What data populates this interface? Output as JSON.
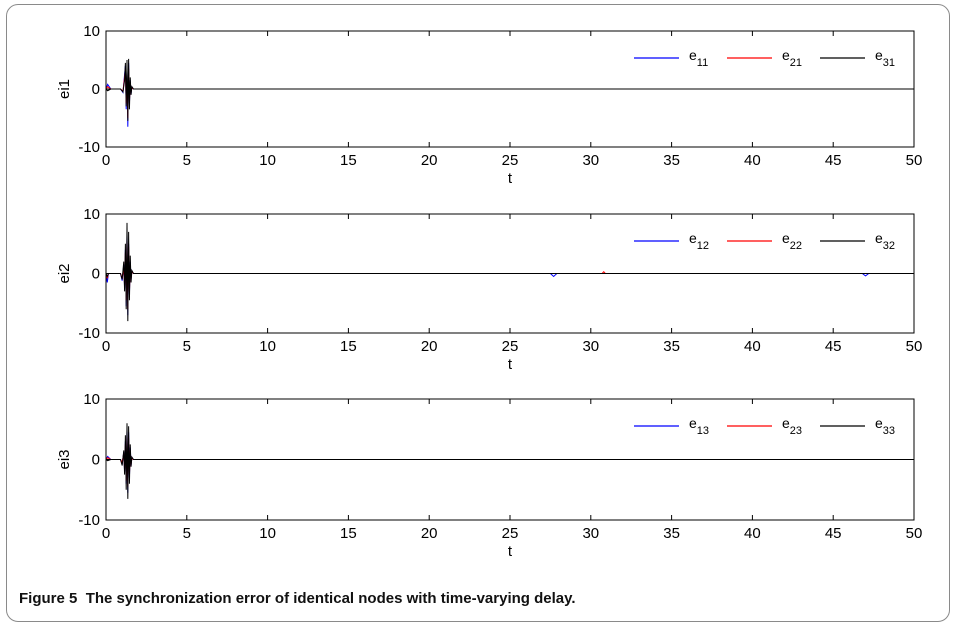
{
  "caption": {
    "label": "Figure 5",
    "text": "The synchronization error of identical nodes with time-varying delay."
  },
  "chart_data": [
    {
      "type": "line",
      "ylabel": "ei1",
      "xlabel": "t",
      "xlim": [
        0,
        50
      ],
      "ylim": [
        -10,
        10
      ],
      "xticks": [
        0,
        5,
        10,
        15,
        20,
        25,
        30,
        35,
        40,
        45,
        50
      ],
      "yticks": [
        -10,
        0,
        10
      ],
      "legend_position": "top-right",
      "series": [
        {
          "name": "e11",
          "base": "e",
          "sub": "11",
          "color": "#0000ff",
          "x": [
            0,
            0.1,
            0.3,
            0.9,
            1.05,
            1.15,
            1.2,
            1.25,
            1.3,
            1.35,
            1.4,
            1.45,
            1.5,
            1.55,
            1.6,
            1.7,
            1.9,
            50
          ],
          "y": [
            0,
            0.8,
            0,
            0,
            -0.6,
            2.5,
            4.0,
            -3.5,
            3.0,
            -6.5,
            4.5,
            -2.5,
            1.5,
            -0.8,
            0.3,
            0,
            0,
            0
          ]
        },
        {
          "name": "e21",
          "base": "e",
          "sub": "21",
          "color": "#ff0000",
          "x": [
            0,
            0.1,
            0.3,
            0.9,
            1.05,
            1.15,
            1.2,
            1.25,
            1.3,
            1.35,
            1.4,
            1.45,
            1.5,
            1.55,
            1.6,
            1.7,
            1.9,
            50
          ],
          "y": [
            0,
            0.4,
            0,
            0,
            -0.4,
            2.0,
            3.5,
            -2.5,
            2.5,
            -5.0,
            3.5,
            -2.0,
            1.2,
            -0.5,
            0.2,
            0,
            0,
            0
          ]
        },
        {
          "name": "e31",
          "base": "e",
          "sub": "31",
          "color": "#000000",
          "x": [
            0,
            0.1,
            0.3,
            0.9,
            1.05,
            1.15,
            1.2,
            1.25,
            1.3,
            1.35,
            1.4,
            1.45,
            1.5,
            1.55,
            1.6,
            1.7,
            1.9,
            50
          ],
          "y": [
            0,
            -0.3,
            0,
            0,
            -0.5,
            1.5,
            4.5,
            -3.0,
            5.0,
            -5.5,
            5.2,
            -3.5,
            2.0,
            -1.0,
            0.4,
            0,
            0,
            0
          ]
        }
      ]
    },
    {
      "type": "line",
      "ylabel": "ei2",
      "xlabel": "t",
      "xlim": [
        0,
        50
      ],
      "ylim": [
        -10,
        10
      ],
      "xticks": [
        0,
        5,
        10,
        15,
        20,
        25,
        30,
        35,
        40,
        45,
        50
      ],
      "yticks": [
        -10,
        0,
        10
      ],
      "legend_position": "top-right",
      "series": [
        {
          "name": "e12",
          "base": "e",
          "sub": "12",
          "color": "#0000ff",
          "x": [
            0,
            0.08,
            0.15,
            0.3,
            0.9,
            1.0,
            1.1,
            1.15,
            1.2,
            1.25,
            1.3,
            1.35,
            1.4,
            1.45,
            1.5,
            1.55,
            1.6,
            1.7,
            1.9,
            27.5,
            27.7,
            27.9,
            46.8,
            47.0,
            47.2,
            50
          ],
          "y": [
            0,
            -1.5,
            0,
            0,
            0,
            -1.2,
            1.5,
            -2.5,
            4.0,
            -5.5,
            6.5,
            -7.0,
            5.0,
            -3.5,
            2.0,
            -1.0,
            0.4,
            0,
            0,
            0,
            -0.5,
            0,
            0,
            -0.4,
            0,
            0
          ]
        },
        {
          "name": "e22",
          "base": "e",
          "sub": "22",
          "color": "#ff0000",
          "x": [
            0,
            0.08,
            0.15,
            0.3,
            0.9,
            1.0,
            1.1,
            1.15,
            1.2,
            1.25,
            1.3,
            1.35,
            1.4,
            1.45,
            1.5,
            1.55,
            1.6,
            1.7,
            1.9,
            30.7,
            30.8,
            30.9,
            50
          ],
          "y": [
            0,
            -0.8,
            0,
            0,
            0,
            -0.8,
            1.0,
            -2.0,
            3.5,
            -4.5,
            5.5,
            -6.0,
            4.5,
            -3.0,
            1.5,
            -0.8,
            0.3,
            0,
            0,
            0,
            0.3,
            0,
            0
          ]
        },
        {
          "name": "e32",
          "base": "e",
          "sub": "32",
          "color": "#000000",
          "x": [
            0,
            0.08,
            0.15,
            0.3,
            0.9,
            1.0,
            1.1,
            1.15,
            1.2,
            1.25,
            1.3,
            1.35,
            1.4,
            1.45,
            1.5,
            1.55,
            1.6,
            1.7,
            1.9,
            50
          ],
          "y": [
            0,
            -0.5,
            0,
            0,
            0,
            -1.0,
            2.0,
            -3.0,
            5.0,
            -6.0,
            8.5,
            -8.0,
            7.0,
            -4.5,
            3.0,
            -1.5,
            0.5,
            0,
            0,
            0
          ]
        }
      ]
    },
    {
      "type": "line",
      "ylabel": "ei3",
      "xlabel": "t",
      "xlim": [
        0,
        50
      ],
      "ylim": [
        -10,
        10
      ],
      "xticks": [
        0,
        5,
        10,
        15,
        20,
        25,
        30,
        35,
        40,
        45,
        50
      ],
      "yticks": [
        -10,
        0,
        10
      ],
      "legend_position": "top-right",
      "series": [
        {
          "name": "e13",
          "base": "e",
          "sub": "13",
          "color": "#0000ff",
          "x": [
            0,
            0.1,
            0.3,
            0.9,
            1.0,
            1.1,
            1.15,
            1.2,
            1.25,
            1.3,
            1.35,
            1.4,
            1.45,
            1.5,
            1.55,
            1.6,
            1.7,
            1.9,
            50
          ],
          "y": [
            0,
            0.5,
            0,
            0,
            -0.8,
            1.2,
            -2.0,
            3.0,
            -4.0,
            5.0,
            -5.5,
            4.5,
            -3.0,
            2.0,
            -1.0,
            0.3,
            0,
            0,
            0
          ]
        },
        {
          "name": "e23",
          "base": "e",
          "sub": "23",
          "color": "#ff0000",
          "x": [
            0,
            0.1,
            0.3,
            0.9,
            1.0,
            1.1,
            1.15,
            1.2,
            1.25,
            1.3,
            1.35,
            1.4,
            1.45,
            1.5,
            1.55,
            1.6,
            1.7,
            1.9,
            50
          ],
          "y": [
            0,
            0.3,
            0,
            0,
            -0.5,
            1.0,
            -1.5,
            2.5,
            -3.5,
            4.0,
            -4.5,
            3.5,
            -2.5,
            1.5,
            -0.8,
            0.2,
            0,
            0,
            0
          ]
        },
        {
          "name": "e33",
          "base": "e",
          "sub": "33",
          "color": "#000000",
          "x": [
            0,
            0.1,
            0.3,
            0.9,
            1.0,
            1.1,
            1.15,
            1.2,
            1.25,
            1.3,
            1.35,
            1.4,
            1.45,
            1.5,
            1.55,
            1.6,
            1.7,
            1.9,
            50
          ],
          "y": [
            0,
            -0.2,
            0,
            0,
            -1.0,
            1.5,
            -2.5,
            4.0,
            -5.0,
            6.0,
            -6.5,
            5.5,
            -4.0,
            2.5,
            -1.2,
            0.4,
            0,
            0,
            0
          ]
        }
      ]
    }
  ]
}
